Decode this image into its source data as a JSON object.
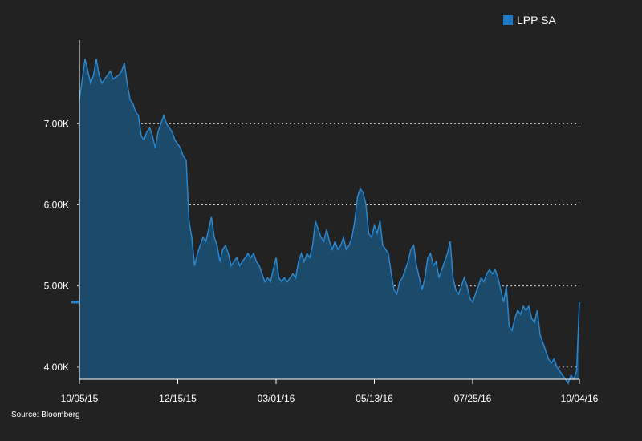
{
  "legend": {
    "label": "LPP SA",
    "color": "#1f7bc6"
  },
  "source": "Source: Bloomberg",
  "chart_data": {
    "type": "area",
    "series": [
      {
        "name": "LPP SA",
        "color": "#2a87cf",
        "fill": "#1b4a6b",
        "points": [
          [
            0,
            7300
          ],
          [
            1,
            7550
          ],
          [
            2,
            7800
          ],
          [
            3,
            7650
          ],
          [
            4,
            7500
          ],
          [
            5,
            7600
          ],
          [
            6,
            7800
          ],
          [
            7,
            7600
          ],
          [
            8,
            7500
          ],
          [
            9,
            7550
          ],
          [
            10,
            7600
          ],
          [
            11,
            7650
          ],
          [
            12,
            7550
          ],
          [
            13,
            7580
          ],
          [
            14,
            7600
          ],
          [
            15,
            7650
          ],
          [
            16,
            7750
          ],
          [
            17,
            7500
          ],
          [
            18,
            7300
          ],
          [
            19,
            7250
          ],
          [
            20,
            7150
          ],
          [
            21,
            7100
          ],
          [
            22,
            6850
          ],
          [
            23,
            6800
          ],
          [
            24,
            6900
          ],
          [
            25,
            6950
          ],
          [
            26,
            6850
          ],
          [
            27,
            6700
          ],
          [
            28,
            6900
          ],
          [
            29,
            7000
          ],
          [
            30,
            7100
          ],
          [
            31,
            7000
          ],
          [
            32,
            6950
          ],
          [
            33,
            6900
          ],
          [
            34,
            6800
          ],
          [
            35,
            6750
          ],
          [
            36,
            6700
          ],
          [
            37,
            6600
          ],
          [
            38,
            6550
          ],
          [
            39,
            5800
          ],
          [
            40,
            5600
          ],
          [
            41,
            5250
          ],
          [
            42,
            5400
          ],
          [
            43,
            5500
          ],
          [
            44,
            5600
          ],
          [
            45,
            5550
          ],
          [
            46,
            5700
          ],
          [
            47,
            5850
          ],
          [
            48,
            5600
          ],
          [
            49,
            5500
          ],
          [
            50,
            5300
          ],
          [
            51,
            5450
          ],
          [
            52,
            5500
          ],
          [
            53,
            5400
          ],
          [
            54,
            5250
          ],
          [
            55,
            5300
          ],
          [
            56,
            5350
          ],
          [
            57,
            5250
          ],
          [
            58,
            5300
          ],
          [
            59,
            5350
          ],
          [
            60,
            5400
          ],
          [
            61,
            5350
          ],
          [
            62,
            5400
          ],
          [
            63,
            5300
          ],
          [
            64,
            5250
          ],
          [
            65,
            5150
          ],
          [
            66,
            5050
          ],
          [
            67,
            5100
          ],
          [
            68,
            5050
          ],
          [
            69,
            5200
          ],
          [
            70,
            5350
          ],
          [
            71,
            5100
          ],
          [
            72,
            5050
          ],
          [
            73,
            5100
          ],
          [
            74,
            5050
          ],
          [
            75,
            5100
          ],
          [
            76,
            5150
          ],
          [
            77,
            5100
          ],
          [
            78,
            5300
          ],
          [
            79,
            5400
          ],
          [
            80,
            5300
          ],
          [
            81,
            5400
          ],
          [
            82,
            5350
          ],
          [
            83,
            5500
          ],
          [
            84,
            5800
          ],
          [
            85,
            5700
          ],
          [
            86,
            5600
          ],
          [
            87,
            5550
          ],
          [
            88,
            5700
          ],
          [
            89,
            5550
          ],
          [
            90,
            5450
          ],
          [
            91,
            5550
          ],
          [
            92,
            5450
          ],
          [
            93,
            5500
          ],
          [
            94,
            5600
          ],
          [
            95,
            5450
          ],
          [
            96,
            5500
          ],
          [
            97,
            5600
          ],
          [
            98,
            5800
          ],
          [
            99,
            6100
          ],
          [
            100,
            6200
          ],
          [
            101,
            6150
          ],
          [
            102,
            6000
          ],
          [
            103,
            5650
          ],
          [
            104,
            5600
          ],
          [
            105,
            5750
          ],
          [
            106,
            5650
          ],
          [
            107,
            5800
          ],
          [
            108,
            5500
          ],
          [
            109,
            5450
          ],
          [
            110,
            5400
          ],
          [
            111,
            5150
          ],
          [
            112,
            4950
          ],
          [
            113,
            4900
          ],
          [
            114,
            5050
          ],
          [
            115,
            5100
          ],
          [
            116,
            5200
          ],
          [
            117,
            5300
          ],
          [
            118,
            5450
          ],
          [
            119,
            5500
          ],
          [
            120,
            5250
          ],
          [
            121,
            5100
          ],
          [
            122,
            4950
          ],
          [
            123,
            5100
          ],
          [
            124,
            5350
          ],
          [
            125,
            5400
          ],
          [
            126,
            5250
          ],
          [
            127,
            5300
          ],
          [
            128,
            5100
          ],
          [
            129,
            5200
          ],
          [
            130,
            5300
          ],
          [
            131,
            5400
          ],
          [
            132,
            5550
          ],
          [
            133,
            5100
          ],
          [
            134,
            4950
          ],
          [
            135,
            4900
          ],
          [
            136,
            5000
          ],
          [
            137,
            5100
          ],
          [
            138,
            5000
          ],
          [
            139,
            4850
          ],
          [
            140,
            4800
          ],
          [
            141,
            4900
          ],
          [
            142,
            5000
          ],
          [
            143,
            5100
          ],
          [
            144,
            5050
          ],
          [
            145,
            5150
          ],
          [
            146,
            5200
          ],
          [
            147,
            5150
          ],
          [
            148,
            5200
          ],
          [
            149,
            5100
          ],
          [
            150,
            4950
          ],
          [
            151,
            4800
          ],
          [
            152,
            5000
          ],
          [
            153,
            4500
          ],
          [
            154,
            4450
          ],
          [
            155,
            4600
          ],
          [
            156,
            4700
          ],
          [
            157,
            4650
          ],
          [
            158,
            4750
          ],
          [
            159,
            4700
          ],
          [
            160,
            4750
          ],
          [
            161,
            4600
          ],
          [
            162,
            4550
          ],
          [
            163,
            4700
          ],
          [
            164,
            4400
          ],
          [
            165,
            4300
          ],
          [
            166,
            4200
          ],
          [
            167,
            4100
          ],
          [
            168,
            4050
          ],
          [
            169,
            4100
          ],
          [
            170,
            4000
          ],
          [
            171,
            3950
          ],
          [
            172,
            3900
          ],
          [
            173,
            3850
          ],
          [
            174,
            3800
          ],
          [
            175,
            3900
          ],
          [
            176,
            3850
          ],
          [
            177,
            3950
          ],
          [
            178,
            4800
          ]
        ]
      }
    ],
    "x_tick_labels": [
      "10/05/15",
      "12/15/15",
      "03/01/16",
      "05/13/16",
      "07/25/16",
      "10/04/16"
    ],
    "x_tick_positions": [
      0,
      35,
      70,
      105,
      140,
      178
    ],
    "y_ticks": [
      4000,
      5000,
      6000,
      7000
    ],
    "y_tick_labels": [
      "4.00K",
      "5.00K",
      "6.00K",
      "7.00K"
    ],
    "ylim": [
      3850,
      8150
    ],
    "current_value_marker": 4800,
    "grid": "horizontal dotted"
  }
}
